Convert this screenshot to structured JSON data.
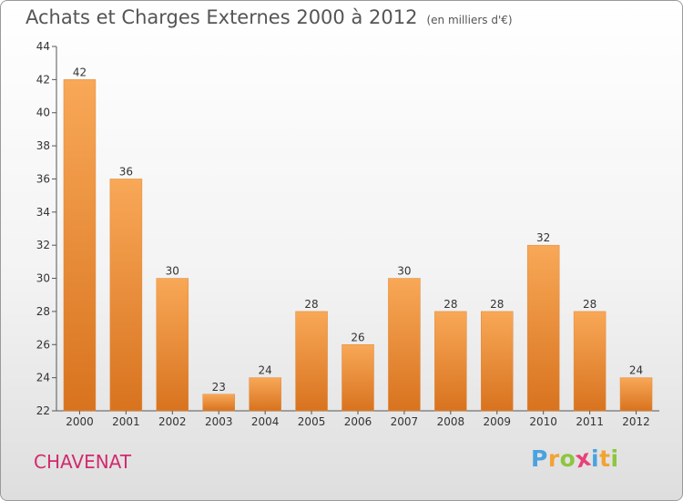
{
  "title": "Achats et Charges Externes 2000 à 2012",
  "subtitle": "(en milliers d'€)",
  "commune": "CHAVENAT",
  "logo": {
    "letters": [
      "P",
      "r",
      "o",
      "x",
      "i",
      "t",
      "i"
    ],
    "colors": [
      "#4aa3df",
      "#f2a333",
      "#8dc63f",
      "#e8407a",
      "#4aa3df",
      "#f2a333",
      "#8dc63f"
    ]
  },
  "colors": {
    "bar_light": "#f8a857",
    "bar_dark": "#d8731f",
    "commune": "#d22a6e",
    "title": "#555555"
  },
  "chart_data": {
    "type": "bar",
    "categories": [
      "2000",
      "2001",
      "2002",
      "2003",
      "2004",
      "2005",
      "2006",
      "2007",
      "2008",
      "2009",
      "2010",
      "2011",
      "2012"
    ],
    "values": [
      42,
      36,
      30,
      23,
      24,
      28,
      26,
      30,
      28,
      28,
      32,
      28,
      24
    ],
    "title": "Achats et Charges Externes 2000 à 2012",
    "xlabel": "",
    "ylabel": "",
    "ylim": [
      22,
      44
    ],
    "yticks": [
      22,
      24,
      26,
      28,
      30,
      32,
      34,
      36,
      38,
      40,
      42,
      44
    ],
    "grid": false,
    "legend": "none"
  }
}
